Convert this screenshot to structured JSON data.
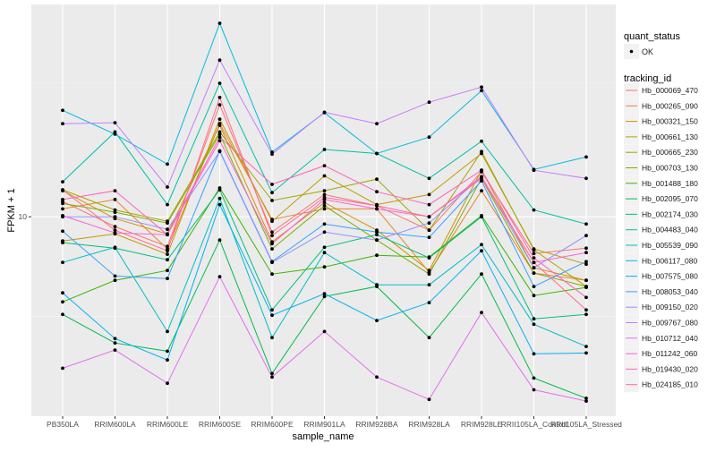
{
  "chart_data": {
    "type": "line",
    "xlabel": "sample_name",
    "ylabel": "FPKM + 1",
    "y_scale": "log10",
    "ylim": [
      1.81,
      61.7
    ],
    "y_ticks": [
      10
    ],
    "y_tick_labels": [
      "10"
    ],
    "grid": true,
    "legend_position": "right",
    "categories": [
      "PB350LA",
      "RRIM600LA",
      "RRIM600LE",
      "RRIM600SE",
      "RRIM600PE",
      "RRIM901LA",
      "RRIM928BA",
      "RRIM928LA",
      "RRIM928LE",
      "RRII105LA_Control",
      "RRII105LA_Stressed"
    ],
    "legend_shape": {
      "title": "quant_status",
      "entries": [
        "OK"
      ]
    },
    "legend_color_title": "tracking_id",
    "series": [
      {
        "name": "Hb_000069_470",
        "color": "#F8766D",
        "values": [
          11.4,
          9.19,
          7.76,
          26.1,
          8.77,
          12.1,
          11.0,
          8.91,
          14.7,
          7.3,
          7.64
        ]
      },
      {
        "name": "Hb_000265_090",
        "color": "#EA8331",
        "values": [
          10.7,
          11.6,
          7.59,
          22.2,
          9.77,
          10.7,
          10.7,
          6.21,
          12.5,
          6.17,
          5.8
        ]
      },
      {
        "name": "Hb_000321_150",
        "color": "#D89000",
        "values": [
          12.5,
          9.85,
          8.64,
          21.9,
          8.06,
          11.3,
          8.91,
          6.31,
          14.9,
          6.46,
          5.8
        ]
      },
      {
        "name": "Hb_000661_130",
        "color": "#C09B00",
        "values": [
          8.13,
          8.64,
          7.25,
          23.1,
          9.62,
          14.2,
          11.1,
          12.1,
          17.2,
          7.59,
          6.66
        ]
      },
      {
        "name": "Hb_000665_230",
        "color": "#A3A500",
        "values": [
          12.6,
          10.6,
          9.62,
          20.7,
          11.5,
          12.5,
          13.8,
          8.91,
          17.5,
          7.53,
          5.5
        ]
      },
      {
        "name": "Hb_000703_130",
        "color": "#7CAE00",
        "values": [
          11.2,
          10.4,
          9.48,
          20.3,
          7.59,
          11.0,
          8.19,
          6.12,
          13.9,
          6.17,
          5.5
        ]
      },
      {
        "name": "Hb_001488_180",
        "color": "#39B600",
        "values": [
          4.82,
          5.8,
          6.31,
          12.8,
          6.12,
          6.51,
          7.19,
          7.08,
          10.1,
          5.09,
          5.46
        ]
      },
      {
        "name": "Hb_002095_070",
        "color": "#00BB4E",
        "values": [
          4.33,
          3.39,
          3.16,
          8.19,
          2.61,
          5.05,
          5.5,
          3.55,
          6.12,
          2.51,
          2.11
        ]
      },
      {
        "name": "Hb_002174_030",
        "color": "#00BF7D",
        "values": [
          8.01,
          7.64,
          6.92,
          12.6,
          4.5,
          7.7,
          8.58,
          7.03,
          10.0,
          4.17,
          4.33
        ]
      },
      {
        "name": "Hb_004483_040",
        "color": "#00C1A3",
        "values": [
          13.5,
          20.7,
          11.1,
          31.4,
          12.3,
          17.8,
          17.2,
          13.9,
          19.1,
          10.6,
          9.4
        ]
      },
      {
        "name": "Hb_005539_090",
        "color": "#00BFC4",
        "values": [
          6.76,
          7.7,
          3.74,
          11.7,
          3.55,
          7.36,
          5.58,
          5.58,
          7.88,
          3.98,
          3.29
        ]
      },
      {
        "name": "Hb_006117_080",
        "color": "#00BAE0",
        "values": [
          24.9,
          20.3,
          15.7,
          52.5,
          17.4,
          24.4,
          17.2,
          19.8,
          29.5,
          15.0,
          16.7
        ]
      },
      {
        "name": "Hb_007575_080",
        "color": "#00B0F6",
        "values": [
          5.21,
          3.52,
          2.93,
          11.1,
          4.3,
          5.17,
          4.11,
          4.79,
          7.47,
          3.09,
          3.11
        ]
      },
      {
        "name": "Hb_008053_040",
        "color": "#35A2FF",
        "values": [
          8.84,
          6.02,
          5.89,
          17.6,
          6.81,
          9.4,
          8.77,
          8.38,
          13.6,
          5.5,
          6.81
        ]
      },
      {
        "name": "Hb_009150_020",
        "color": "#9590FF",
        "values": [
          10.0,
          10.0,
          8.98,
          17.5,
          6.76,
          8.77,
          8.19,
          9.48,
          14.1,
          6.46,
          8.51
        ]
      },
      {
        "name": "Hb_009767_080",
        "color": "#C77CFF",
        "values": [
          22.2,
          22.4,
          12.9,
          38.3,
          17.1,
          24.5,
          22.2,
          26.7,
          30.4,
          14.9,
          13.9
        ]
      },
      {
        "name": "Hb_010712_040",
        "color": "#E76BF3",
        "values": [
          2.73,
          3.19,
          2.4,
          5.98,
          2.53,
          3.74,
          2.53,
          2.09,
          4.4,
          2.27,
          2.06
        ]
      },
      {
        "name": "Hb_011242_060",
        "color": "#FA62DB",
        "values": [
          10.1,
          8.71,
          8.58,
          19.2,
          7.94,
          11.6,
          10.7,
          10.0,
          14.1,
          6.76,
          7.36
        ]
      },
      {
        "name": "Hb_019430_020",
        "color": "#FF62BC",
        "values": [
          11.6,
          12.5,
          8.58,
          19.8,
          13.2,
          15.5,
          12.4,
          11.1,
          14.9,
          7.03,
          5.01
        ]
      },
      {
        "name": "Hb_024185_010",
        "color": "#FF6C91",
        "values": [
          12.6,
          8.91,
          7.47,
          27.8,
          8.51,
          11.8,
          11.0,
          10.0,
          13.9,
          6.76,
          4.5
        ]
      }
    ]
  }
}
